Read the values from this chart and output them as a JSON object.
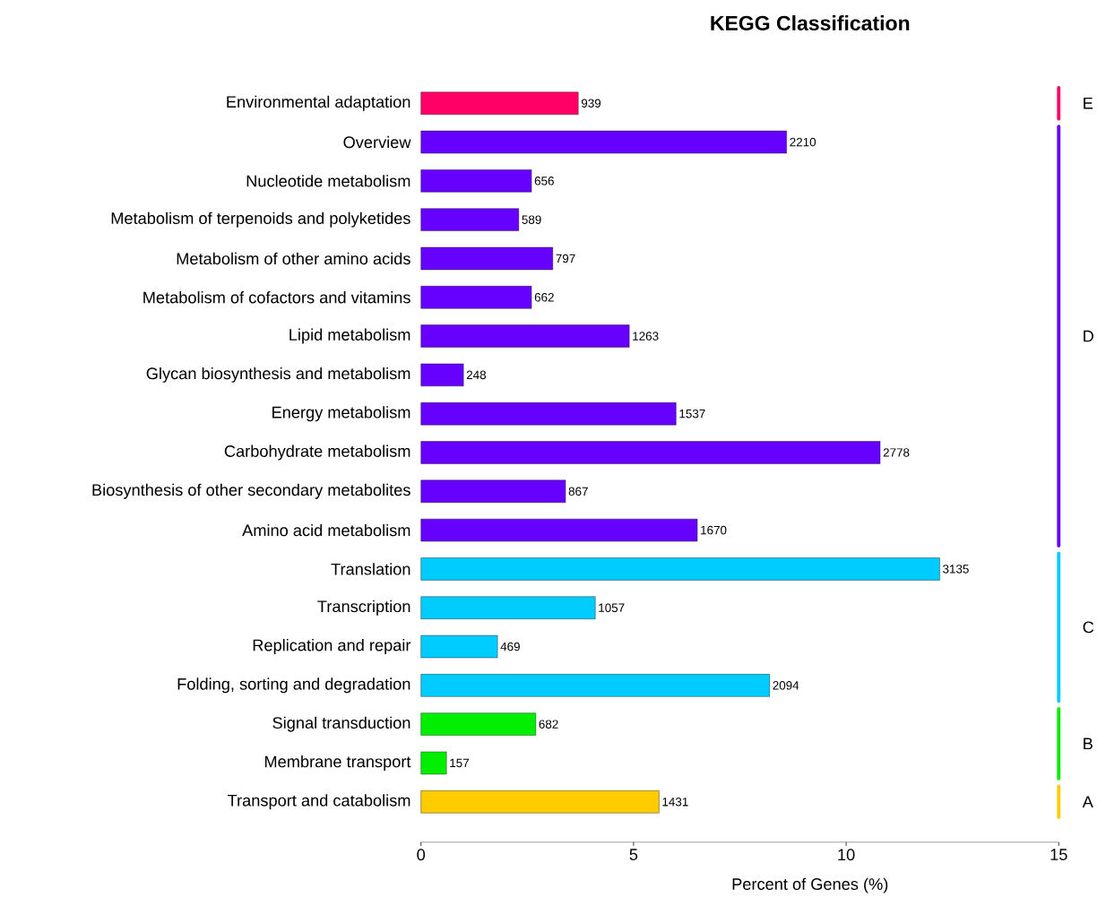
{
  "chart_data": {
    "type": "bar",
    "orientation": "horizontal",
    "title": "KEGG Classification",
    "xlabel": "Percent of Genes (%)",
    "categories": [
      "Environmental adaptation",
      "Overview",
      "Nucleotide metabolism",
      "Metabolism of terpenoids and polyketides",
      "Metabolism of other amino acids",
      "Metabolism of cofactors and vitamins",
      "Lipid metabolism",
      "Glycan biosynthesis and metabolism",
      "Energy metabolism",
      "Carbohydrate metabolism",
      "Biosynthesis of other secondary metabolites",
      "Amino acid metabolism",
      "Translation",
      "Transcription",
      "Replication and repair",
      "Folding, sorting and degradation",
      "Signal transduction",
      "Membrane transport",
      "Transport and catabolism"
    ],
    "values": [
      3.7,
      8.6,
      2.6,
      2.3,
      3.1,
      2.6,
      4.9,
      1.0,
      6.0,
      10.8,
      3.4,
      6.5,
      12.2,
      4.1,
      1.8,
      8.2,
      2.7,
      0.6,
      5.6
    ],
    "colors": [
      "#ff0066",
      "#6600ff",
      "#6600ff",
      "#6600ff",
      "#6600ff",
      "#6600ff",
      "#6600ff",
      "#6600ff",
      "#6600ff",
      "#6600ff",
      "#6600ff",
      "#6600ff",
      "#00ccff",
      "#00ccff",
      "#00ccff",
      "#00ccff",
      "#00ee00",
      "#00ee00",
      "#ffcc00"
    ],
    "xlim": [
      0,
      15
    ],
    "xticks": [
      0,
      5,
      10,
      15
    ],
    "annotations": [
      {
        "text": "939",
        "x": 3.7,
        "y": "Environmental adaptation"
      },
      {
        "text": "2210",
        "x": 8.6,
        "y": "Overview"
      },
      {
        "text": "656",
        "x": 2.6,
        "y": "Nucleotide metabolism"
      },
      {
        "text": "589",
        "x": 2.3,
        "y": "Metabolism of terpenoids and polyketides"
      },
      {
        "text": "797",
        "x": 3.1,
        "y": "Metabolism of other amino acids"
      },
      {
        "text": "662",
        "x": 2.6,
        "y": "Metabolism of cofactors and vitamins"
      },
      {
        "text": "1263",
        "x": 4.9,
        "y": "Lipid metabolism"
      },
      {
        "text": "248",
        "x": 1.0,
        "y": "Glycan biosynthesis and metabolism"
      },
      {
        "text": "1537",
        "x": 6.0,
        "y": "Energy metabolism"
      },
      {
        "text": "2778",
        "x": 10.8,
        "y": "Carbohydrate metabolism"
      },
      {
        "text": "867",
        "x": 3.4,
        "y": "Biosynthesis of other secondary metabolites"
      },
      {
        "text": "1670",
        "x": 6.5,
        "y": "Amino acid metabolism"
      },
      {
        "text": "3135",
        "x": 12.2,
        "y": "Translation"
      },
      {
        "text": "1057",
        "x": 4.1,
        "y": "Transcription"
      },
      {
        "text": "469",
        "x": 1.8,
        "y": "Replication and repair"
      },
      {
        "text": "2094",
        "x": 8.2,
        "y": "Folding, sorting and degradation"
      },
      {
        "text": "682",
        "x": 2.7,
        "y": "Signal transduction"
      },
      {
        "text": "157",
        "x": 0.6,
        "y": "Membrane transport"
      },
      {
        "text": "1431",
        "x": 5.6,
        "y": "Transport and catabolism"
      },
      "E",
      "D",
      "C",
      "B",
      "A"
    ]
  }
}
